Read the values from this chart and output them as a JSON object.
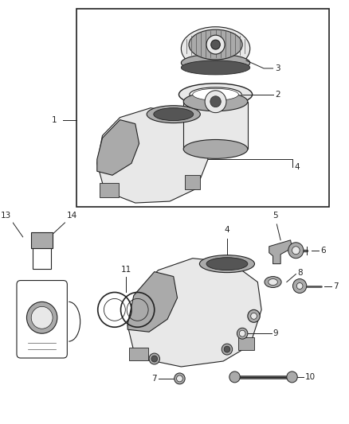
{
  "background_color": "#ffffff",
  "fig_width": 4.38,
  "fig_height": 5.33,
  "dpi": 100,
  "line_color": "#222222",
  "gray_light": "#d0d0d0",
  "gray_mid": "#aaaaaa",
  "gray_dark": "#555555",
  "gray_fill": "#e8e8e8"
}
